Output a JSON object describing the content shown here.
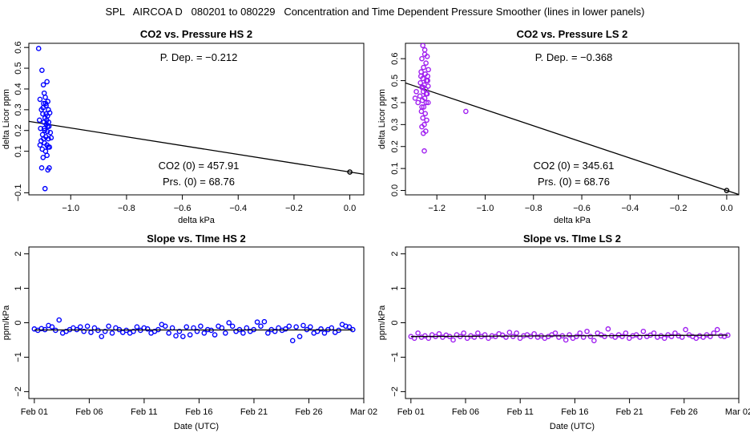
{
  "page_title": "SPL   AIRCOA D   080201 to 080229   Concentration and Time Dependent Pressure Smoother (lines in lower panels)",
  "chart_data": [
    {
      "id": "hs-pressure",
      "type": "scatter",
      "title": "CO2 vs. Pressure HS 2",
      "xlabel": "delta kPa",
      "ylabel": "delta Licor ppm",
      "xlim": [
        -1.15,
        0.05
      ],
      "ylim": [
        -0.11,
        0.62
      ],
      "xticks": [
        -1.0,
        -0.8,
        -0.6,
        -0.4,
        -0.2,
        0.0
      ],
      "xtick_labels": [
        "−1.0",
        "−0.8",
        "−0.6",
        "−0.4",
        "−0.2",
        "0.0"
      ],
      "yticks": [
        -0.1,
        0.1,
        0.2,
        0.3,
        0.4,
        0.5,
        0.6
      ],
      "ytick_labels": [
        "−0.1",
        "0.1",
        "0.2",
        "0.3",
        "0.4",
        "0.5",
        "0.6"
      ],
      "color": "#0000ff",
      "annotations": {
        "p_dep": "P. Dep. =  −0.212",
        "co2_0": "CO2 (0) =  457.91",
        "prs_0": "Prs. (0) =  68.76"
      },
      "fit_line": {
        "slope": -0.212,
        "intercept": 0.0
      },
      "origin_point": {
        "x": 0.0,
        "y": 0.0
      },
      "points": [
        {
          "x": -1.115,
          "y": 0.595
        },
        {
          "x": -1.103,
          "y": 0.49
        },
        {
          "x": -1.098,
          "y": 0.42
        },
        {
          "x": -1.085,
          "y": 0.435
        },
        {
          "x": -1.11,
          "y": 0.35
        },
        {
          "x": -1.095,
          "y": 0.38
        },
        {
          "x": -1.09,
          "y": 0.33
        },
        {
          "x": -1.105,
          "y": 0.3
        },
        {
          "x": -1.088,
          "y": 0.32
        },
        {
          "x": -1.08,
          "y": 0.3
        },
        {
          "x": -1.1,
          "y": 0.28
        },
        {
          "x": -1.092,
          "y": 0.26
        },
        {
          "x": -1.083,
          "y": 0.27
        },
        {
          "x": -1.075,
          "y": 0.285
        },
        {
          "x": -1.112,
          "y": 0.25
        },
        {
          "x": -1.096,
          "y": 0.24
        },
        {
          "x": -1.087,
          "y": 0.23
        },
        {
          "x": -1.078,
          "y": 0.22
        },
        {
          "x": -1.108,
          "y": 0.21
        },
        {
          "x": -1.093,
          "y": 0.2
        },
        {
          "x": -1.084,
          "y": 0.195
        },
        {
          "x": -1.073,
          "y": 0.19
        },
        {
          "x": -1.101,
          "y": 0.18
        },
        {
          "x": -1.089,
          "y": 0.17
        },
        {
          "x": -1.08,
          "y": 0.16
        },
        {
          "x": -1.07,
          "y": 0.165
        },
        {
          "x": -1.106,
          "y": 0.15
        },
        {
          "x": -1.094,
          "y": 0.14
        },
        {
          "x": -1.085,
          "y": 0.13
        },
        {
          "x": -1.076,
          "y": 0.12
        },
        {
          "x": -1.102,
          "y": 0.11
        },
        {
          "x": -1.09,
          "y": 0.1
        },
        {
          "x": -1.081,
          "y": 0.12
        },
        {
          "x": -1.11,
          "y": 0.13
        },
        {
          "x": -1.097,
          "y": 0.16
        },
        {
          "x": -1.086,
          "y": 0.25
        },
        {
          "x": -1.079,
          "y": 0.24
        },
        {
          "x": -1.099,
          "y": 0.31
        },
        {
          "x": -1.091,
          "y": 0.36
        },
        {
          "x": -1.082,
          "y": 0.34
        },
        {
          "x": -1.104,
          "y": 0.02
        },
        {
          "x": -1.082,
          "y": 0.01
        },
        {
          "x": -1.077,
          "y": 0.02
        },
        {
          "x": -1.092,
          "y": -0.08
        },
        {
          "x": -1.099,
          "y": 0.07
        },
        {
          "x": -1.085,
          "y": 0.08
        },
        {
          "x": -1.095,
          "y": 0.21
        },
        {
          "x": -1.083,
          "y": 0.22
        },
        {
          "x": -1.088,
          "y": 0.28
        },
        {
          "x": -1.097,
          "y": 0.33
        }
      ]
    },
    {
      "id": "ls-pressure",
      "type": "scatter",
      "title": "CO2 vs. Pressure LS 2",
      "xlabel": "delta kPa",
      "ylabel": "delta Licor ppm",
      "xlim": [
        -1.33,
        0.05
      ],
      "ylim": [
        -0.02,
        0.67
      ],
      "xticks": [
        -1.2,
        -1.0,
        -0.8,
        -0.6,
        -0.4,
        -0.2,
        0.0
      ],
      "xtick_labels": [
        "−1.2",
        "−1.0",
        "−0.8",
        "−0.6",
        "−0.4",
        "−0.2",
        "0.0"
      ],
      "yticks": [
        0.0,
        0.1,
        0.2,
        0.3,
        0.4,
        0.5,
        0.6
      ],
      "ytick_labels": [
        "0.0",
        "0.1",
        "0.2",
        "0.3",
        "0.4",
        "0.5",
        "0.6"
      ],
      "color": "#a020f0",
      "annotations": {
        "p_dep": "P. Dep. =  −0.368",
        "co2_0": "CO2 (0) =  345.61",
        "prs_0": "Prs. (0) =  68.76"
      },
      "fit_line": {
        "slope": -0.368,
        "intercept": 0.0
      },
      "origin_point": {
        "x": 0.0,
        "y": 0.0
      },
      "points": [
        {
          "x": -1.258,
          "y": 0.66
        },
        {
          "x": -1.25,
          "y": 0.64
        },
        {
          "x": -1.24,
          "y": 0.61
        },
        {
          "x": -1.262,
          "y": 0.6
        },
        {
          "x": -1.245,
          "y": 0.58
        },
        {
          "x": -1.255,
          "y": 0.56
        },
        {
          "x": -1.235,
          "y": 0.55
        },
        {
          "x": -1.265,
          "y": 0.54
        },
        {
          "x": -1.248,
          "y": 0.53
        },
        {
          "x": -1.238,
          "y": 0.52
        },
        {
          "x": -1.258,
          "y": 0.51
        },
        {
          "x": -1.243,
          "y": 0.5
        },
        {
          "x": -1.268,
          "y": 0.49
        },
        {
          "x": -1.252,
          "y": 0.48
        },
        {
          "x": -1.236,
          "y": 0.475
        },
        {
          "x": -1.262,
          "y": 0.47
        },
        {
          "x": -1.246,
          "y": 0.46
        },
        {
          "x": -1.256,
          "y": 0.45
        },
        {
          "x": -1.24,
          "y": 0.44
        },
        {
          "x": -1.27,
          "y": 0.43
        },
        {
          "x": -1.25,
          "y": 0.42
        },
        {
          "x": -1.26,
          "y": 0.41
        },
        {
          "x": -1.244,
          "y": 0.4
        },
        {
          "x": -1.285,
          "y": 0.45
        },
        {
          "x": -1.29,
          "y": 0.42
        },
        {
          "x": -1.278,
          "y": 0.4
        },
        {
          "x": -1.254,
          "y": 0.38
        },
        {
          "x": -1.264,
          "y": 0.36
        },
        {
          "x": -1.248,
          "y": 0.35
        },
        {
          "x": -1.258,
          "y": 0.33
        },
        {
          "x": -1.242,
          "y": 0.32
        },
        {
          "x": -1.252,
          "y": 0.3
        },
        {
          "x": -1.262,
          "y": 0.29
        },
        {
          "x": -1.246,
          "y": 0.27
        },
        {
          "x": -1.256,
          "y": 0.26
        },
        {
          "x": -1.252,
          "y": 0.18
        },
        {
          "x": -1.08,
          "y": 0.36
        },
        {
          "x": -1.238,
          "y": 0.5
        },
        {
          "x": -1.266,
          "y": 0.52
        },
        {
          "x": -1.25,
          "y": 0.62
        },
        {
          "x": -1.244,
          "y": 0.44
        },
        {
          "x": -1.257,
          "y": 0.47
        },
        {
          "x": -1.236,
          "y": 0.4
        },
        {
          "x": -1.262,
          "y": 0.38
        }
      ]
    },
    {
      "id": "hs-slope",
      "type": "scatter",
      "title": "Slope vs. TIme HS 2",
      "xlabel": "Date (UTC)",
      "ylabel": "ppm/kPa",
      "xlim": [
        -0.5,
        30.0
      ],
      "ylim": [
        -2.2,
        2.2
      ],
      "xticks": [
        0,
        5,
        10,
        15,
        20,
        25,
        30
      ],
      "xtick_labels": [
        "Feb 01",
        "Feb 06",
        "Feb 11",
        "Feb 16",
        "Feb 21",
        "Feb 26",
        "Mar 02"
      ],
      "yticks": [
        -2,
        -1,
        0,
        1,
        2
      ],
      "ytick_labels": [
        "−2",
        "−1",
        "0",
        "1",
        "2"
      ],
      "color": "#0000ff",
      "smooth_line": {
        "x": [
          0,
          29
        ],
        "y": [
          -0.21,
          -0.21
        ]
      },
      "points_y": [
        -0.18,
        -0.22,
        -0.17,
        -0.2,
        -0.08,
        -0.12,
        -0.22,
        0.08,
        -0.3,
        -0.25,
        -0.2,
        -0.15,
        -0.2,
        -0.12,
        -0.25,
        -0.1,
        -0.28,
        -0.15,
        -0.22,
        -0.4,
        -0.25,
        -0.1,
        -0.3,
        -0.15,
        -0.2,
        -0.28,
        -0.22,
        -0.3,
        -0.25,
        -0.12,
        -0.22,
        -0.15,
        -0.18,
        -0.3,
        -0.25,
        -0.2,
        -0.05,
        -0.1,
        -0.3,
        -0.15,
        -0.38,
        -0.25,
        -0.4,
        -0.12,
        -0.35,
        -0.15,
        -0.25,
        -0.1,
        -0.3,
        -0.2,
        -0.22,
        -0.35,
        -0.1,
        -0.15,
        -0.3,
        0.0,
        -0.1,
        -0.25,
        -0.2,
        -0.3,
        -0.15,
        -0.25,
        -0.2,
        0.02,
        -0.1,
        0.03,
        -0.3,
        -0.2,
        -0.25,
        -0.15,
        -0.22,
        -0.18,
        -0.1,
        -0.52,
        -0.12,
        -0.4,
        -0.08,
        -0.2,
        -0.12,
        -0.3,
        -0.25,
        -0.18,
        -0.3,
        -0.2,
        -0.15,
        -0.28,
        -0.22,
        -0.05,
        -0.1,
        -0.12,
        -0.2
      ]
    },
    {
      "id": "ls-slope",
      "type": "scatter",
      "title": "Slope vs. TIme LS 2",
      "xlabel": "Date (UTC)",
      "ylabel": "ppm/kPa",
      "xlim": [
        -0.5,
        30.0
      ],
      "ylim": [
        -2.2,
        2.2
      ],
      "xticks": [
        0,
        5,
        10,
        15,
        20,
        25,
        30
      ],
      "xtick_labels": [
        "Feb 01",
        "Feb 06",
        "Feb 11",
        "Feb 16",
        "Feb 21",
        "Feb 26",
        "Mar 02"
      ],
      "yticks": [
        -2,
        -1,
        0,
        1,
        2
      ],
      "ytick_labels": [
        "−2",
        "−1",
        "0",
        "1",
        "2"
      ],
      "color": "#a020f0",
      "smooth_line": {
        "x": [
          0,
          29
        ],
        "y": [
          -0.4,
          -0.36
        ]
      },
      "points_y": [
        -0.4,
        -0.45,
        -0.3,
        -0.42,
        -0.38,
        -0.45,
        -0.35,
        -0.4,
        -0.32,
        -0.42,
        -0.36,
        -0.4,
        -0.5,
        -0.35,
        -0.4,
        -0.3,
        -0.45,
        -0.38,
        -0.42,
        -0.3,
        -0.4,
        -0.35,
        -0.45,
        -0.38,
        -0.4,
        -0.32,
        -0.36,
        -0.42,
        -0.28,
        -0.4,
        -0.3,
        -0.45,
        -0.38,
        -0.35,
        -0.4,
        -0.32,
        -0.42,
        -0.38,
        -0.45,
        -0.4,
        -0.35,
        -0.3,
        -0.42,
        -0.38,
        -0.5,
        -0.35,
        -0.45,
        -0.4,
        -0.3,
        -0.42,
        -0.25,
        -0.4,
        -0.52,
        -0.3,
        -0.35,
        -0.4,
        -0.18,
        -0.38,
        -0.42,
        -0.35,
        -0.4,
        -0.3,
        -0.45,
        -0.38,
        -0.35,
        -0.42,
        -0.25,
        -0.4,
        -0.36,
        -0.3,
        -0.42,
        -0.38,
        -0.45,
        -0.35,
        -0.4,
        -0.3,
        -0.38,
        -0.42,
        -0.2,
        -0.35,
        -0.4,
        -0.45,
        -0.38,
        -0.42,
        -0.35,
        -0.4,
        -0.3,
        -0.2,
        -0.38,
        -0.4,
        -0.36
      ]
    }
  ]
}
